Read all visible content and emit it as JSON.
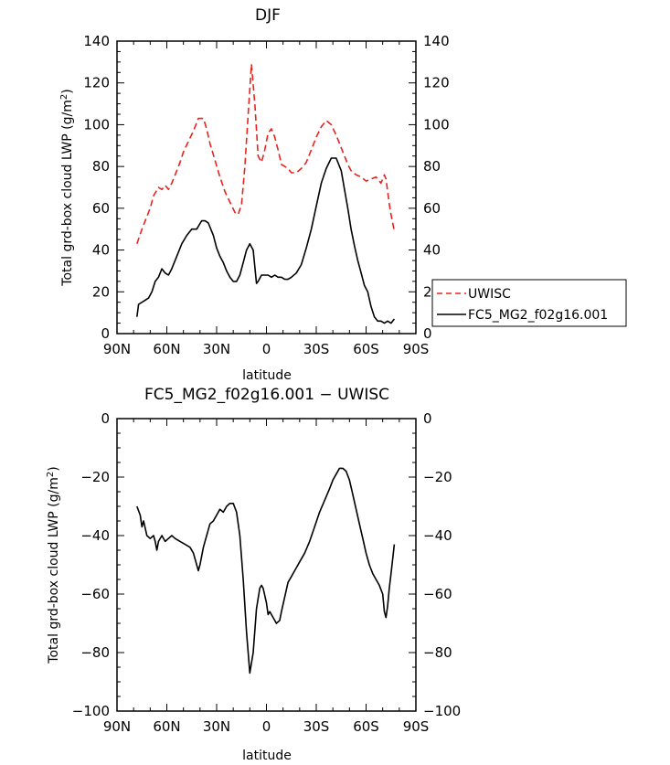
{
  "chart_data": [
    {
      "type": "line",
      "title": "DJF",
      "xlabel": "latitude",
      "ylabel": "Total grd-box cloud LWP (g/m²)",
      "xlim": [
        90,
        -90
      ],
      "ylim": [
        0,
        140
      ],
      "x_tick_labels": [
        "90N",
        "60N",
        "30N",
        "0",
        "30S",
        "60S",
        "90S"
      ],
      "y_tick_labels": [
        "0",
        "20",
        "40",
        "60",
        "80",
        "100",
        "120",
        "140"
      ],
      "legend_position": "right",
      "series": [
        {
          "name": "UWISC",
          "color": "#e8231e",
          "dash": "dashed",
          "x": [
            78,
            75,
            72,
            70,
            68,
            65,
            63,
            61,
            59,
            57,
            55,
            52,
            50,
            47,
            44,
            41,
            38,
            36,
            34,
            31,
            28,
            25,
            22,
            19,
            17,
            15,
            13,
            11,
            9,
            7,
            5,
            3,
            1,
            -1,
            -3,
            -5,
            -7,
            -9,
            -11,
            -13,
            -15,
            -18,
            -21,
            -24,
            -27,
            -30,
            -33,
            -36,
            -39,
            -42,
            -45,
            -47,
            -49,
            -51,
            -54,
            -57,
            -60,
            -63,
            -66,
            -69,
            -71,
            -72,
            -74,
            -75,
            -77
          ],
          "y": [
            43,
            50,
            56,
            60,
            66,
            70,
            69,
            71,
            69,
            72,
            76,
            82,
            87,
            92,
            97,
            103,
            103,
            98,
            91,
            83,
            75,
            68,
            63,
            58,
            57,
            62,
            80,
            105,
            129,
            110,
            85,
            82,
            88,
            96,
            98,
            94,
            88,
            81,
            80,
            79,
            77,
            77,
            79,
            82,
            88,
            94,
            99,
            102,
            100,
            95,
            89,
            85,
            81,
            78,
            76,
            75,
            73,
            74,
            75,
            72,
            76,
            74,
            62,
            57,
            49
          ]
        },
        {
          "name": "FC5_MG2_f02g16.001",
          "color": "#000000",
          "dash": "solid",
          "x": [
            78,
            77,
            75,
            73,
            71,
            69,
            67,
            65,
            63,
            61,
            59,
            57,
            54,
            51,
            48,
            45,
            42,
            39,
            37,
            35,
            32,
            30,
            28,
            26,
            24,
            22,
            20,
            18,
            16,
            14,
            12,
            10,
            8,
            7,
            6,
            5,
            3,
            1,
            -1,
            -3,
            -5,
            -7,
            -9,
            -11,
            -13,
            -15,
            -18,
            -21,
            -24,
            -27,
            -30,
            -33,
            -36,
            -39,
            -42,
            -45,
            -47,
            -49,
            -51,
            -53,
            -55,
            -57,
            -59,
            -61,
            -63,
            -65,
            -67,
            -69,
            -71,
            -73,
            -75,
            -77
          ],
          "y": [
            8,
            14,
            15,
            16,
            17,
            20,
            25,
            27,
            31,
            29,
            28,
            31,
            37,
            43,
            47,
            50,
            50,
            54,
            54,
            53,
            47,
            41,
            37,
            34,
            30,
            27,
            25,
            25,
            28,
            34,
            40,
            43,
            40,
            32,
            24,
            25,
            28,
            28,
            28,
            27,
            28,
            27,
            27,
            26,
            26,
            27,
            29,
            33,
            41,
            50,
            61,
            72,
            79,
            84,
            84,
            78,
            69,
            60,
            50,
            42,
            35,
            29,
            23,
            20,
            13,
            8,
            6,
            6,
            5,
            6,
            5,
            7
          ]
        }
      ]
    },
    {
      "type": "line",
      "title": "FC5_MG2_f02g16.001 − UWISC",
      "xlabel": "latitude",
      "ylabel": "Total grd-box cloud LWP (g/m²)",
      "xlim": [
        90,
        -90
      ],
      "ylim": [
        -100,
        0
      ],
      "x_tick_labels": [
        "90N",
        "60N",
        "30N",
        "0",
        "30S",
        "60S",
        "90S"
      ],
      "y_tick_labels": [
        "−100",
        "−80",
        "−60",
        "−40",
        "−20",
        "0"
      ],
      "series": [
        {
          "color": "#000000",
          "dash": "solid",
          "x": [
            78,
            76,
            75,
            74,
            72,
            70,
            68,
            67,
            66,
            65,
            63,
            61,
            59,
            57,
            55,
            52,
            49,
            46,
            44,
            42,
            41,
            40,
            38,
            36,
            34,
            32,
            30,
            28,
            26,
            24,
            22,
            20,
            18,
            16,
            14,
            12,
            10,
            8,
            6,
            4,
            3,
            2,
            0,
            -1,
            -2,
            -4,
            -6,
            -8,
            -9,
            -11,
            -13,
            -15,
            -17,
            -20,
            -23,
            -26,
            -29,
            -32,
            -35,
            -38,
            -40,
            -42,
            -44,
            -46,
            -48,
            -50,
            -52,
            -54,
            -56,
            -58,
            -60,
            -62,
            -64,
            -66,
            -68,
            -70,
            -71,
            -72,
            -73,
            -74,
            -75,
            -77
          ],
          "y": [
            -30,
            -33,
            -37,
            -35,
            -40,
            -41,
            -40,
            -42,
            -45,
            -42,
            -40,
            -42,
            -41,
            -40,
            -41,
            -42,
            -43,
            -44,
            -46,
            -50,
            -52,
            -50,
            -44,
            -40,
            -36,
            -35,
            -33,
            -31,
            -32,
            -30,
            -29,
            -29,
            -32,
            -40,
            -55,
            -73,
            -87,
            -80,
            -65,
            -58,
            -57,
            -58,
            -63,
            -67,
            -66,
            -68,
            -70,
            -69,
            -66,
            -61,
            -56,
            -54,
            -52,
            -49,
            -46,
            -42,
            -37,
            -32,
            -28,
            -24,
            -21,
            -19,
            -17,
            -17,
            -18,
            -21,
            -26,
            -31,
            -36,
            -41,
            -46,
            -50,
            -53,
            -55,
            -57,
            -60,
            -66,
            -68,
            -64,
            -58,
            -53,
            -43
          ]
        }
      ]
    }
  ]
}
